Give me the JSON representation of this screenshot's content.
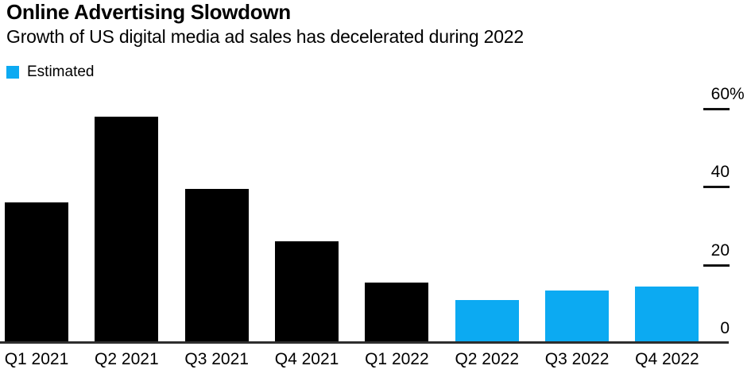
{
  "header": {
    "title": "Online Advertising Slowdown",
    "subtitle": "Growth of US digital media ad sales has decelerated during 2022"
  },
  "legend": {
    "items": [
      {
        "label": "Estimated",
        "color": "#0caaf2"
      }
    ]
  },
  "colors": {
    "actual_bar": "#000000",
    "estimated_bar": "#0caaf2",
    "axis_line": "#2e2e2e",
    "tick": "#111111",
    "text": "#000000",
    "background": "#ffffff"
  },
  "chart_data": {
    "type": "bar",
    "title": "Online Advertising Slowdown",
    "subtitle": "Growth of US digital media ad sales has decelerated during 2022",
    "categories": [
      "Q1 2021",
      "Q2 2021",
      "Q3 2021",
      "Q4 2021",
      "Q1 2022",
      "Q2 2022",
      "Q3 2022",
      "Q4 2022"
    ],
    "values": [
      36,
      58,
      39.5,
      26,
      15.5,
      11,
      13.5,
      14.5
    ],
    "estimated": [
      false,
      false,
      false,
      false,
      false,
      true,
      true,
      true
    ],
    "unit": "%",
    "xlabel": "",
    "ylabel": "",
    "ylim": [
      0,
      60
    ],
    "y_ticks": [
      0,
      20,
      40,
      60
    ],
    "y_tick_labels": [
      "0",
      "20",
      "40",
      "60%"
    ],
    "y_axis_position": "right",
    "grid": false,
    "legend_entries": [
      {
        "label": "Estimated",
        "color": "#0caaf2"
      }
    ],
    "bar_colors": {
      "actual": "#000000",
      "estimated": "#0caaf2"
    }
  }
}
